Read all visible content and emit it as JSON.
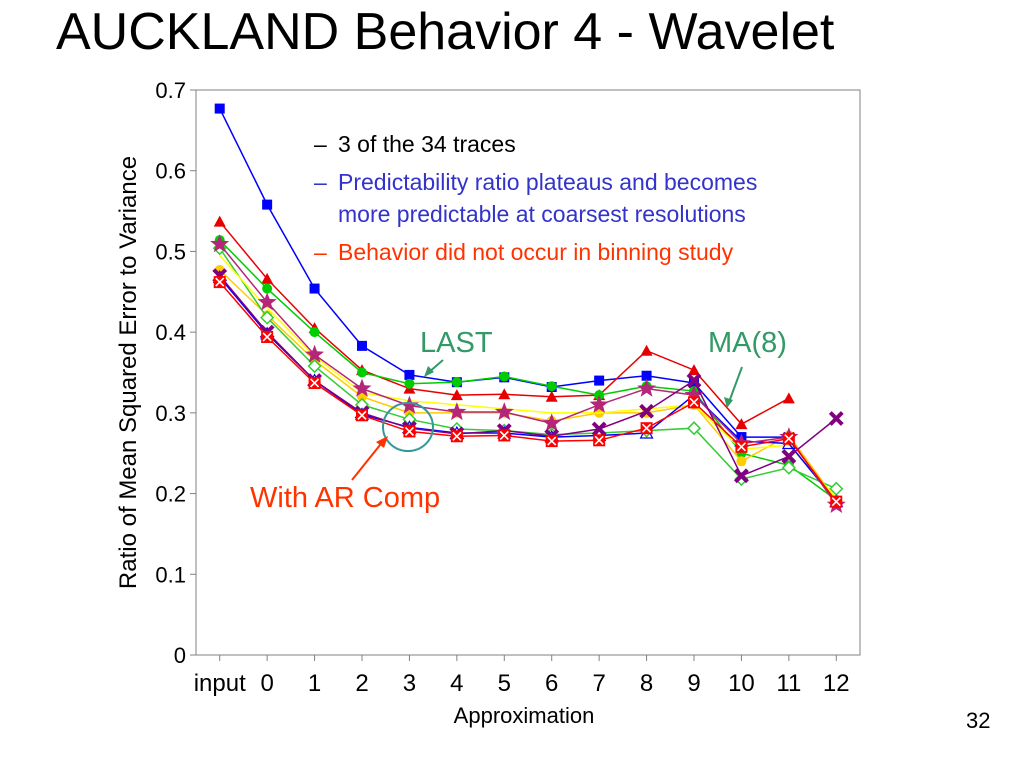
{
  "slide": {
    "title": "AUCKLAND Behavior 4 - Wavelet",
    "page_number": "32"
  },
  "bullets": [
    {
      "dash": "–",
      "lines": [
        "3 of the 34 traces"
      ],
      "color": "#000000"
    },
    {
      "dash": "–",
      "lines": [
        "Predictability ratio plateaus and becomes",
        "more predictable at coarsest resolutions"
      ],
      "color": "#3333cc"
    },
    {
      "dash": "–",
      "lines": [
        "Behavior did not occur in binning study"
      ],
      "color": "#ff3300"
    }
  ],
  "annotations": {
    "last": "LAST",
    "ma8": "MA(8)",
    "ar_comp": "With AR Comp"
  },
  "colors": {
    "annotation_green": "#339966",
    "annotation_red": "#ff3300",
    "circle": "#339999"
  },
  "chart_data": {
    "type": "line",
    "xlabel": "Approximation",
    "ylabel": "Ratio of Mean Squared Error to Variance",
    "categories": [
      "input",
      "0",
      "1",
      "2",
      "3",
      "4",
      "5",
      "6",
      "7",
      "8",
      "9",
      "10",
      "11",
      "12"
    ],
    "ylim": [
      0,
      0.7
    ],
    "yticks": [
      "0",
      "0.1",
      "0.2",
      "0.3",
      "0.4",
      "0.5",
      "0.6",
      "0.7"
    ],
    "grid": false,
    "legend": "none",
    "series": [
      {
        "color": "#0000ff",
        "marker": "square",
        "values": [
          0.677,
          0.558,
          0.454,
          0.383,
          0.347,
          0.338,
          0.344,
          0.332,
          0.34,
          0.346,
          0.337,
          0.27,
          0.27,
          null
        ]
      },
      {
        "color": "#e80000",
        "marker": "triangle",
        "values": [
          0.537,
          0.466,
          0.405,
          0.353,
          0.33,
          0.322,
          0.323,
          0.32,
          0.322,
          0.377,
          0.353,
          0.286,
          0.318,
          null
        ]
      },
      {
        "color": "#00cc00",
        "marker": "circle",
        "values": [
          0.514,
          0.454,
          0.4,
          0.35,
          0.336,
          0.338,
          0.345,
          0.333,
          0.322,
          0.333,
          0.327,
          0.25,
          0.235,
          0.192
        ]
      },
      {
        "color": "#ffcc00",
        "marker": "circle",
        "values": [
          0.477,
          0.421,
          0.365,
          0.32,
          0.3,
          0.3,
          0.3,
          0.29,
          0.3,
          0.3,
          0.31,
          0.24,
          0.272,
          0.192
        ]
      },
      {
        "color": "#33cc33",
        "marker": "diamond-open",
        "values": [
          0.504,
          0.418,
          0.358,
          0.31,
          0.292,
          0.28,
          0.278,
          0.273,
          0.275,
          0.278,
          0.281,
          0.218,
          0.232,
          0.206
        ]
      },
      {
        "color": "#ffff00",
        "marker": "none",
        "values": [
          0.495,
          0.43,
          0.37,
          0.325,
          0.315,
          0.31,
          0.305,
          0.3,
          0.3,
          0.305,
          0.31,
          0.255,
          0.26,
          0.195
        ]
      },
      {
        "color": "#0000ff",
        "marker": "triangle-open",
        "values": [
          0.468,
          0.398,
          0.34,
          0.298,
          0.282,
          0.275,
          0.275,
          0.27,
          0.272,
          0.275,
          0.322,
          0.265,
          0.262,
          0.19
        ]
      },
      {
        "color": "#b42678",
        "marker": "star",
        "values": [
          0.509,
          0.437,
          0.372,
          0.33,
          0.309,
          0.301,
          0.301,
          0.287,
          0.31,
          0.33,
          0.322,
          0.262,
          0.27,
          0.186
        ]
      },
      {
        "color": "#800080",
        "marker": "x",
        "values": [
          0.47,
          0.4,
          0.34,
          0.3,
          0.281,
          0.274,
          0.278,
          0.271,
          0.28,
          0.302,
          0.34,
          0.222,
          0.246,
          0.293
        ]
      },
      {
        "color": "#ff0000",
        "marker": "square-x",
        "values": [
          0.462,
          0.394,
          0.337,
          0.297,
          0.277,
          0.271,
          0.272,
          0.265,
          0.266,
          0.281,
          0.313,
          0.258,
          0.268,
          0.19
        ]
      }
    ]
  }
}
